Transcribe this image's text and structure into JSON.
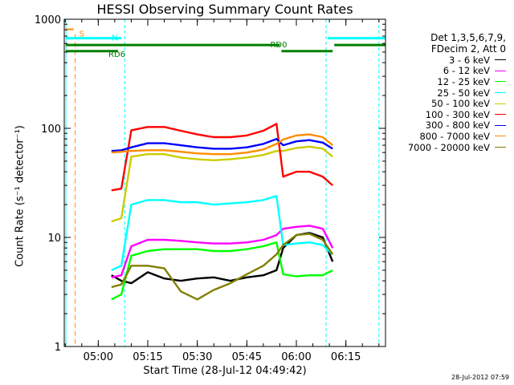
{
  "chart_data": {
    "type": "line",
    "title": "HESSI Observing Summary Count Rates",
    "xlabel": "Start Time (28-Jul-12 04:49:42)",
    "ylabel": "Count Rate (s⁻¹ detector⁻¹)",
    "yscale": "log",
    "ylim": [
      1,
      1000
    ],
    "xlim": [
      "04:49:42",
      "06:27:00"
    ],
    "x_ticks": [
      "05:00",
      "05:15",
      "05:30",
      "05:45",
      "06:00",
      "06:15"
    ],
    "y_ticks": [
      "1",
      "10",
      "100",
      "1000"
    ],
    "grid": false,
    "legend_header": [
      "Det 1,3,5,6,7,9,",
      "FDecim 2, Att 0"
    ],
    "timestamp": "28-Jul-2012 07:59",
    "legend_placement": "right",
    "flags": [
      {
        "name": "S",
        "color": "#ff8c00",
        "time": "04:53",
        "level": 730
      },
      {
        "name": "N",
        "color": "#00ffff",
        "segments": [
          [
            "04:49:42",
            "05:07"
          ],
          [
            "06:09",
            "06:27"
          ]
        ],
        "level": 670
      },
      {
        "name": "RD0",
        "color": "#008000",
        "segments": [
          [
            "04:49:42",
            "05:55"
          ],
          [
            "06:11",
            "06:27"
          ]
        ],
        "level": 580
      },
      {
        "name": "RD6",
        "color": "#008000",
        "segments": [
          [
            "04:49:42",
            "05:06"
          ],
          [
            "05:55",
            "06:11"
          ]
        ],
        "level": 510
      }
    ],
    "night_boundaries": [
      "04:49:42",
      "05:08",
      "06:09",
      "06:25"
    ],
    "series": [
      {
        "name": "3 - 6 keV",
        "color": "#000000",
        "x": [
          "05:04",
          "05:07",
          "05:10",
          "05:15",
          "05:20",
          "05:25",
          "05:30",
          "05:35",
          "05:40",
          "05:45",
          "05:50",
          "05:54",
          "05:56",
          "06:00",
          "06:04",
          "06:08",
          "06:11"
        ],
        "y": [
          4.5,
          4,
          3.8,
          4.8,
          4.2,
          4.0,
          4.2,
          4.3,
          4.0,
          4.3,
          4.5,
          5.0,
          8,
          10.5,
          11,
          10,
          6
        ]
      },
      {
        "name": "6 - 12 keV",
        "color": "#ff00ff",
        "x": [
          "05:04",
          "05:07",
          "05:10",
          "05:15",
          "05:20",
          "05:25",
          "05:30",
          "05:35",
          "05:40",
          "05:45",
          "05:50",
          "05:54",
          "05:56",
          "06:00",
          "06:04",
          "06:08",
          "06:11"
        ],
        "y": [
          4.3,
          4.5,
          8.3,
          9.5,
          9.5,
          9.3,
          9.0,
          8.8,
          8.8,
          9.0,
          9.5,
          10.5,
          12,
          12.5,
          12.8,
          12,
          8
        ]
      },
      {
        "name": "12 - 25 keV",
        "color": "#00ff00",
        "x": [
          "05:04",
          "05:07",
          "05:10",
          "05:15",
          "05:20",
          "05:25",
          "05:30",
          "05:35",
          "05:40",
          "05:45",
          "05:50",
          "05:54",
          "05:56",
          "06:00",
          "06:04",
          "06:08",
          "06:11"
        ],
        "y": [
          2.7,
          3.0,
          6.8,
          7.5,
          7.8,
          7.8,
          7.8,
          7.5,
          7.5,
          7.8,
          8.3,
          9.0,
          4.6,
          4.4,
          4.5,
          4.5,
          5
        ]
      },
      {
        "name": "25 - 50 keV",
        "color": "#00ffff",
        "x": [
          "05:04",
          "05:07",
          "05:10",
          "05:15",
          "05:20",
          "05:25",
          "05:30",
          "05:35",
          "05:40",
          "05:45",
          "05:50",
          "05:54",
          "05:56",
          "06:00",
          "06:04",
          "06:08",
          "06:11"
        ],
        "y": [
          5.0,
          5.5,
          20,
          22,
          22,
          21,
          21,
          20,
          20.5,
          21,
          22,
          24,
          8.5,
          8.8,
          9.0,
          8.5,
          7
        ]
      },
      {
        "name": "50 - 100 keV",
        "color": "#cccc00",
        "x": [
          "05:04",
          "05:07",
          "05:10",
          "05:15",
          "05:20",
          "05:25",
          "05:30",
          "05:35",
          "05:40",
          "05:45",
          "05:50",
          "05:54",
          "05:56",
          "06:00",
          "06:04",
          "06:08",
          "06:11"
        ],
        "y": [
          14,
          15,
          55,
          58,
          58,
          54,
          52,
          51,
          52,
          54,
          57,
          62,
          62,
          66,
          68,
          65,
          55
        ]
      },
      {
        "name": "100 - 300 keV",
        "color": "#ff0000",
        "x": [
          "05:04",
          "05:07",
          "05:10",
          "05:15",
          "05:20",
          "05:25",
          "05:30",
          "05:35",
          "05:40",
          "05:45",
          "05:50",
          "05:54",
          "05:56",
          "06:00",
          "06:04",
          "06:08",
          "06:11"
        ],
        "y": [
          27,
          28,
          96,
          103,
          103,
          95,
          88,
          83,
          83,
          86,
          95,
          110,
          36,
          40,
          40,
          36,
          30
        ]
      },
      {
        "name": "300 - 800 keV",
        "color": "#0000ff",
        "x": [
          "05:04",
          "05:07",
          "05:10",
          "05:15",
          "05:20",
          "05:25",
          "05:30",
          "05:35",
          "05:40",
          "05:45",
          "05:50",
          "05:54",
          "05:56",
          "06:00",
          "06:04",
          "06:08",
          "06:11"
        ],
        "y": [
          62,
          63,
          67,
          73,
          73,
          70,
          67,
          65,
          65,
          67,
          72,
          80,
          70,
          76,
          78,
          74,
          65
        ]
      },
      {
        "name": "800 - 7000 keV",
        "color": "#ff8c00",
        "x": [
          "05:04",
          "05:07",
          "05:10",
          "05:15",
          "05:20",
          "05:25",
          "05:30",
          "05:35",
          "05:40",
          "05:45",
          "05:50",
          "05:54",
          "05:56",
          "06:00",
          "06:04",
          "06:08",
          "06:11"
        ],
        "y": [
          60,
          61,
          62,
          63,
          63,
          61,
          59,
          58,
          58,
          60,
          64,
          72,
          79,
          86,
          88,
          83,
          70
        ]
      },
      {
        "name": "7000 - 20000 keV",
        "color": "#808000",
        "x": [
          "05:04",
          "05:07",
          "05:10",
          "05:15",
          "05:20",
          "05:25",
          "05:30",
          "05:35",
          "05:40",
          "05:45",
          "05:50",
          "05:54",
          "05:56",
          "06:00",
          "06:04",
          "06:08",
          "06:11"
        ],
        "y": [
          3.5,
          3.7,
          5.5,
          5.5,
          5.2,
          3.2,
          2.7,
          3.3,
          3.8,
          4.6,
          5.5,
          7.0,
          8.5,
          10.5,
          10.8,
          9.5,
          7
        ]
      }
    ]
  }
}
